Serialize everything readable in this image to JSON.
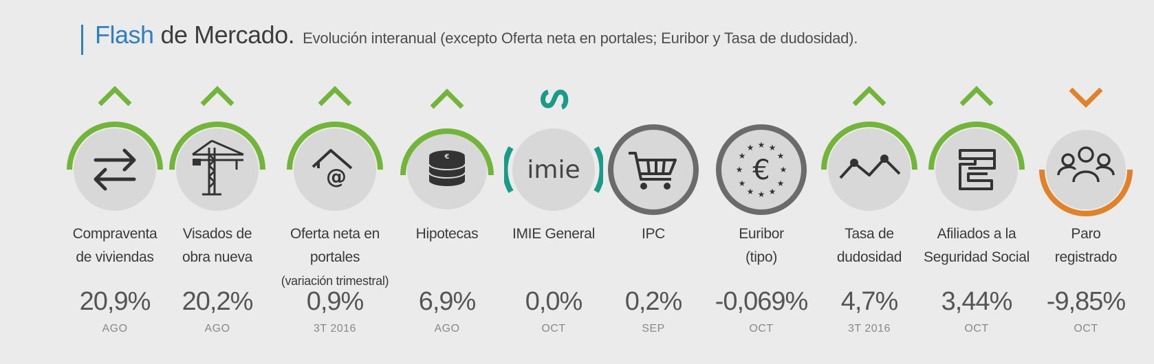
{
  "header": {
    "title_part1": "Flash",
    "title_part2": "de Mercado.",
    "subtitle": "Evolución interanual (excepto Oferta neta en portales; Euribor y Tasa de dudosidad)."
  },
  "colors": {
    "green": "#72b53a",
    "orange": "#e0822a",
    "teal": "#1a9b87",
    "dark_ring": "#6b6b6b",
    "blue": "#2f7fc1"
  },
  "indicators": [
    {
      "label1": "Compraventa",
      "label2": "de viviendas",
      "value": "20,9%",
      "period": "AGO",
      "trend": "up",
      "icon": "exchange-arrows-icon"
    },
    {
      "label1": "Visados de",
      "label2": "obra nueva",
      "value": "20,2%",
      "period": "AGO",
      "trend": "up",
      "icon": "crane-icon"
    },
    {
      "label1": "Oferta neta en portales",
      "label2": "(variación trimestral)",
      "value": "0,9%",
      "period": "3T 2016",
      "trend": "up",
      "icon": "house-at-icon"
    },
    {
      "label1": "Hipotecas",
      "label2": "",
      "value": "6,9%",
      "period": "AGO",
      "trend": "up",
      "icon": "coin-stack-icon"
    },
    {
      "label1": "IMIE General",
      "label2": "",
      "value": "0,0%",
      "period": "OCT",
      "trend": "stable",
      "icon": "imie-logo-icon",
      "logo_text": "imie"
    },
    {
      "label1": "IPC",
      "label2": "",
      "value": "0,2%",
      "period": "SEP",
      "trend": "none",
      "icon": "shopping-cart-icon"
    },
    {
      "label1": "Euribor",
      "label2": "(tipo)",
      "value": "-0,069%",
      "period": "OCT",
      "trend": "none",
      "icon": "euro-stars-icon"
    },
    {
      "label1": "Tasa de",
      "label2": "dudosidad",
      "value": "4,7%",
      "period": "3T 2016",
      "trend": "up",
      "icon": "line-graph-icon"
    },
    {
      "label1": "Afiliados a la",
      "label2": "Seguridad Social",
      "value": "3,44%",
      "period": "OCT",
      "trend": "up",
      "icon": "social-security-icon"
    },
    {
      "label1": "Paro",
      "label2": "registrado",
      "value": "-9,85%",
      "period": "OCT",
      "trend": "down",
      "icon": "people-group-icon"
    }
  ]
}
